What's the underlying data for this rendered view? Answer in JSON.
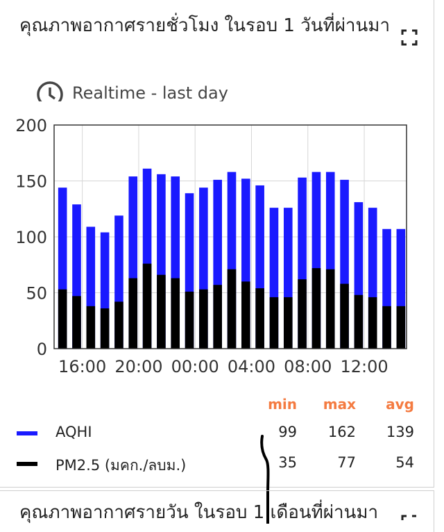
{
  "card": {
    "title": "คุณภาพอากาศรายชั่วโมง ในรอบ 1 วันที่ผ่านมา",
    "time_range": "Realtime - last day"
  },
  "chart_data": {
    "type": "bar",
    "stacked": false,
    "categories": [
      "15:00",
      "16:00",
      "17:00",
      "18:00",
      "19:00",
      "20:00",
      "21:00",
      "22:00",
      "23:00",
      "00:00",
      "01:00",
      "02:00",
      "03:00",
      "04:00",
      "05:00",
      "06:00",
      "07:00",
      "08:00",
      "09:00",
      "10:00",
      "11:00",
      "12:00",
      "13:00",
      "14:00",
      "15:00"
    ],
    "series": [
      {
        "name": "AQHI",
        "color": "#1a1aff",
        "values": [
          144,
          129,
          109,
          104,
          119,
          154,
          161,
          156,
          154,
          139,
          144,
          151,
          158,
          152,
          146,
          126,
          126,
          153,
          158,
          158,
          151,
          131,
          126,
          107,
          107
        ]
      },
      {
        "name": "PM2.5 (มคก./ลบม.)",
        "color": "#000000",
        "values": [
          53,
          47,
          38,
          36,
          42,
          63,
          76,
          66,
          63,
          51,
          53,
          57,
          71,
          60,
          54,
          46,
          46,
          62,
          72,
          71,
          58,
          48,
          46,
          38,
          38
        ]
      }
    ],
    "x_tick_labels": [
      "16:00",
      "20:00",
      "00:00",
      "04:00",
      "08:00",
      "12:00"
    ],
    "y_ticks": [
      0,
      50,
      100,
      150,
      200
    ],
    "ylim": [
      0,
      200
    ],
    "grid": true
  },
  "legend": {
    "headers": {
      "min": "min",
      "max": "max",
      "avg": "avg"
    },
    "header_color": "#f47b41",
    "rows": [
      {
        "label": "AQHI",
        "color": "#1a1aff",
        "min": "99",
        "max": "162",
        "avg": "139"
      },
      {
        "label": "PM2.5 (มคก./ลบม.)",
        "color": "#000000",
        "min": "35",
        "max": "77",
        "avg": "54"
      }
    ]
  },
  "next_card": {
    "title": "คุณภาพอากาศรายวัน ในรอบ 1 เดือนที่ผ่านมา"
  },
  "icons": {
    "clock": "clock-icon",
    "expand": "expand-icon"
  }
}
